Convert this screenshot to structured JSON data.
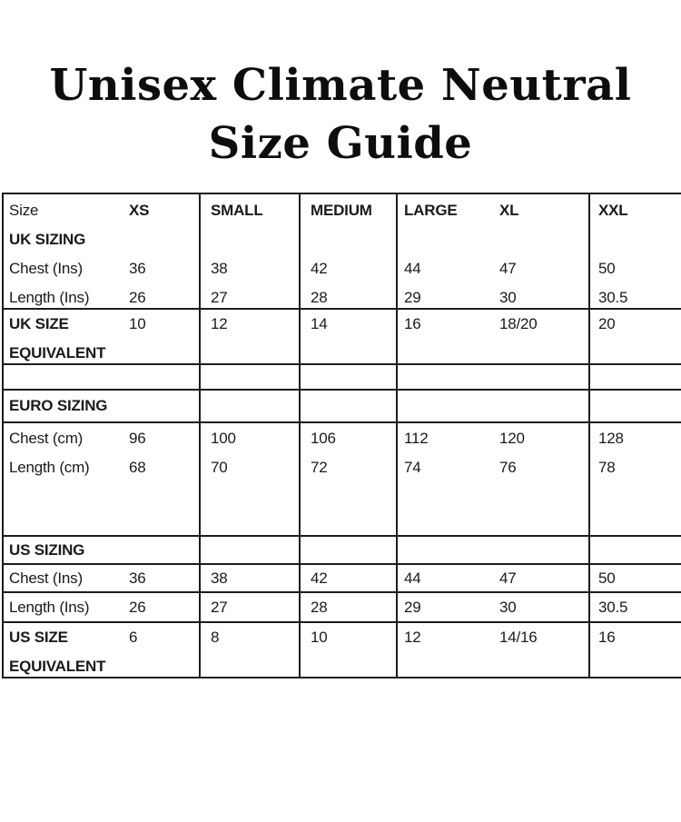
{
  "title": {
    "line1": "Unisex Climate Neutral",
    "line2": "Size Guide"
  },
  "size_guide_table": {
    "header": {
      "size_label": "Size",
      "xs": "XS",
      "small": "SMALL",
      "medium": "MEDIUM",
      "large": "LARGE",
      "xl": "XL",
      "xxl": "XXL"
    },
    "uk": {
      "section_label": "UK SIZING",
      "chest": {
        "label": "Chest (Ins)",
        "xs": "36",
        "small": "38",
        "medium": "42",
        "large": "44",
        "xl": "47",
        "xxl": "50"
      },
      "length": {
        "label": "Length (Ins)",
        "xs": "26",
        "small": "27",
        "medium": "28",
        "large": "29",
        "xl": "30",
        "xxl": "30.5"
      },
      "equivalent": {
        "label_line1": "UK SIZE",
        "label_line2": "EQUIVALENT",
        "xs": "10",
        "small": "12",
        "medium": "14",
        "large": "16",
        "xl": "18/20",
        "xxl": "20"
      }
    },
    "euro": {
      "section_label": "EURO SIZING",
      "chest": {
        "label": "Chest (cm)",
        "xs": "96",
        "small": "100",
        "medium": "106",
        "large": "112",
        "xl": "120",
        "xxl": "128"
      },
      "length": {
        "label": "Length (cm)",
        "xs": "68",
        "small": "70",
        "medium": "72",
        "large": "74",
        "xl": "76",
        "xxl": "78"
      }
    },
    "us": {
      "section_label": "US SIZING",
      "chest": {
        "label": "Chest (Ins)",
        "xs": "36",
        "small": "38",
        "medium": "42",
        "large": "44",
        "xl": "47",
        "xxl": "50"
      },
      "length": {
        "label": "Length (Ins)",
        "xs": "26",
        "small": "27",
        "medium": "28",
        "large": "29",
        "xl": "30",
        "xxl": "30.5"
      },
      "equivalent": {
        "label_line1": "US SIZE",
        "label_line2": "EQUIVALENT",
        "xs": "6",
        "small": "8",
        "medium": "10",
        "large": "12",
        "xl": "14/16",
        "xxl": "16"
      }
    }
  },
  "colors": {
    "text": "#1a1a1a",
    "line": "#1c1c1c",
    "background": "#ffffff"
  }
}
